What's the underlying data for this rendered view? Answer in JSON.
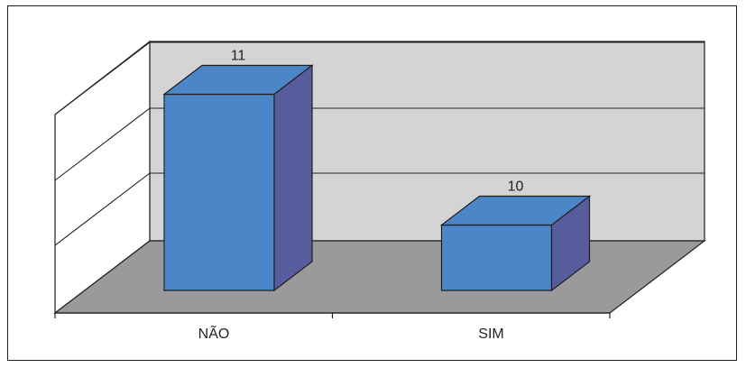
{
  "chart_data": {
    "type": "bar",
    "categories": [
      "NÃO",
      "SIM"
    ],
    "values": [
      11,
      10
    ],
    "data_labels": [
      "11",
      "10"
    ],
    "title": "",
    "xlabel": "",
    "ylabel": "",
    "gridlines": true,
    "style": "3d-column",
    "colors": {
      "bar_front": "#4a86c8",
      "bar_top": "#4a86c8",
      "bar_side": "#575c9c",
      "back_wall": "#d4d4d4",
      "floor": "#9a9a9a",
      "outline": "#231f20"
    }
  }
}
